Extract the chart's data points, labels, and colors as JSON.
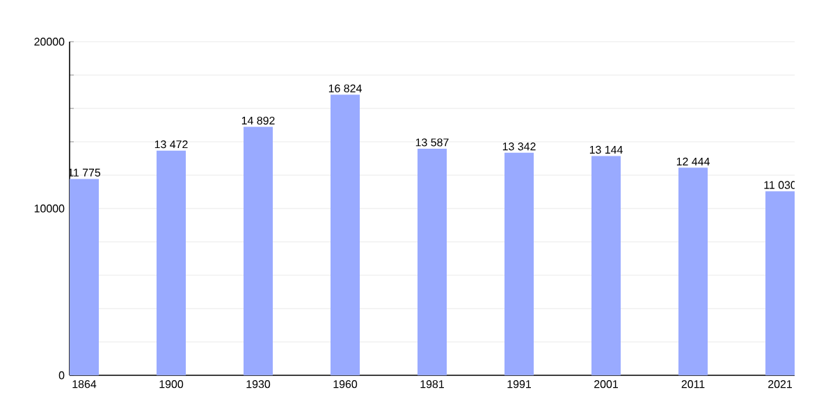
{
  "chart_data": {
    "type": "bar",
    "categories": [
      "1864",
      "1900",
      "1930",
      "1960",
      "1981",
      "1991",
      "2001",
      "2011",
      "2021"
    ],
    "values": [
      11775,
      13472,
      14892,
      16824,
      13587,
      13342,
      13144,
      12444,
      11030
    ],
    "value_labels": [
      "11 775",
      "13 472",
      "14 892",
      "16 824",
      "13 587",
      "13 342",
      "13 144",
      "12 444",
      "11 030"
    ],
    "color": "#99aaff",
    "ylim": [
      0,
      20000
    ],
    "yticks": [
      0,
      {
        "value": 2000,
        "label": null
      },
      {
        "value": 4000,
        "label": null
      },
      {
        "value": 6000,
        "label": null
      },
      {
        "value": 8000,
        "label": null
      },
      10000,
      {
        "value": 12000,
        "label": null
      },
      {
        "value": 14000,
        "label": null
      },
      {
        "value": 16000,
        "label": null
      },
      {
        "value": 18000,
        "label": null
      },
      20000
    ],
    "grid": "y"
  }
}
